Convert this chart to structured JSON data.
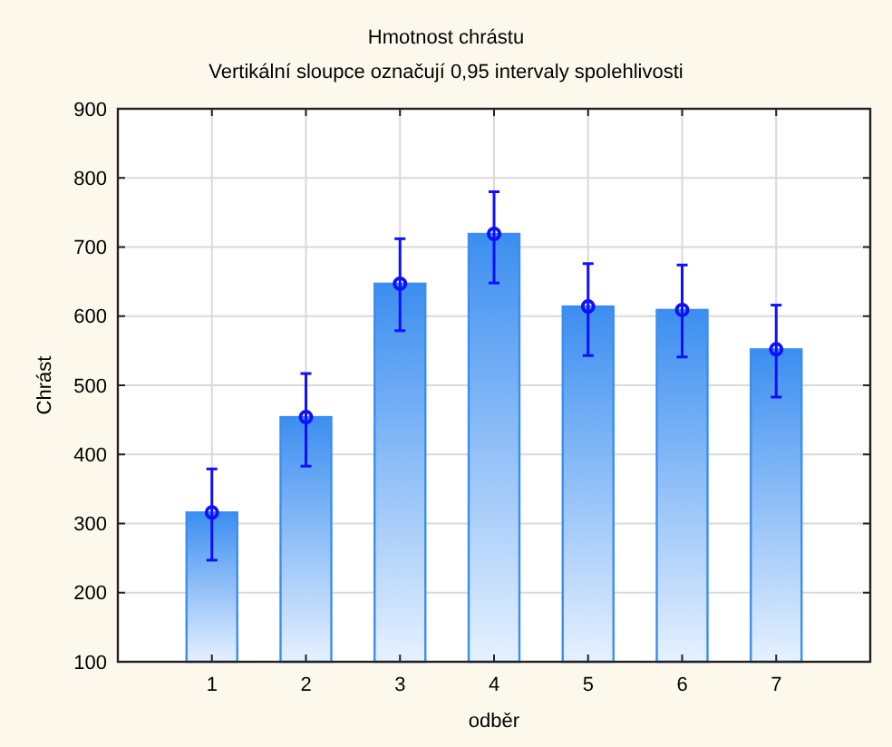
{
  "chart_data": {
    "type": "bar",
    "title": "Hmotnost chrástu",
    "subtitle": "Vertikální sloupce označují 0,95 intervaly spolehlivosti",
    "xlabel": "odběr",
    "ylabel": "Chrást",
    "categories": [
      "1",
      "2",
      "3",
      "4",
      "5",
      "6",
      "7"
    ],
    "series": [
      {
        "color": "#3b8ef0",
        "values": [
          316,
          454,
          647,
          719,
          614,
          609,
          552
        ]
      },
      {
        "type": "scatter",
        "color": "#1010ff",
        "x": [
          "1",
          "2",
          "3",
          "4",
          "5",
          "6",
          "7"
        ],
        "values": [
          316,
          454,
          647,
          719,
          614,
          609,
          552
        ],
        "errors": [
          [
            247,
            379
          ],
          [
            383,
            517
          ],
          [
            579,
            712
          ],
          [
            648,
            780
          ],
          [
            543,
            676
          ],
          [
            541,
            674
          ],
          [
            483,
            616
          ]
        ]
      }
    ],
    "marker": "circle",
    "ylim": [
      100,
      900
    ],
    "yticks": [
      100,
      200,
      300,
      400,
      500,
      600,
      700,
      800,
      900
    ],
    "grid": true
  }
}
